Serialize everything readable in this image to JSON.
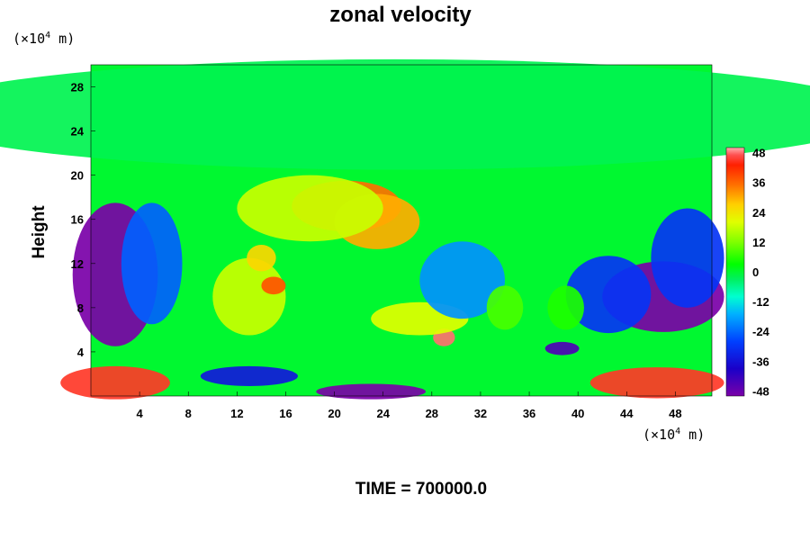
{
  "chart_data": {
    "type": "heatmap",
    "title": "zonal velocity",
    "ylabel": "Height",
    "x_unit": {
      "pre": "(×10",
      "sup": "4",
      "post": " m)"
    },
    "y_unit": {
      "pre": "(×10",
      "sup": "4",
      "post": " m)"
    },
    "x_ticks": [
      4,
      8,
      12,
      16,
      20,
      24,
      28,
      32,
      36,
      40,
      44,
      48
    ],
    "y_ticks": [
      4,
      8,
      12,
      16,
      20,
      24,
      28
    ],
    "xlim": [
      0,
      51
    ],
    "ylim": [
      0,
      30
    ],
    "colorbar_ticks": [
      48,
      36,
      24,
      12,
      0,
      -12,
      -24,
      -36,
      -48
    ],
    "colorbar_range": [
      -50,
      50
    ],
    "grid": false,
    "field_features": [
      {
        "x": 25,
        "y": 25.5,
        "rx": 40,
        "ry": 5,
        "value": -2
      },
      {
        "x": 21,
        "y": 17.2,
        "rx": 4.5,
        "ry": 2.3,
        "value": 35
      },
      {
        "x": 23.5,
        "y": 15.8,
        "rx": 3.5,
        "ry": 2.5,
        "value": 30
      },
      {
        "x": 18,
        "y": 17,
        "rx": 6,
        "ry": 3,
        "value": 18
      },
      {
        "x": 13,
        "y": 9,
        "rx": 3,
        "ry": 3.5,
        "value": 18
      },
      {
        "x": 15,
        "y": 10,
        "rx": 1,
        "ry": 0.8,
        "value": 38
      },
      {
        "x": 14,
        "y": 12.5,
        "rx": 1.2,
        "ry": 1.2,
        "value": 26
      },
      {
        "x": 29,
        "y": 5.3,
        "rx": 0.9,
        "ry": 0.8,
        "value": 48
      },
      {
        "x": 27,
        "y": 7,
        "rx": 4,
        "ry": 1.5,
        "value": 20
      },
      {
        "x": 30.5,
        "y": 10.5,
        "rx": 3.5,
        "ry": 3.5,
        "value": -20
      },
      {
        "x": 2,
        "y": 11,
        "rx": 3.5,
        "ry": 6.5,
        "value": -50
      },
      {
        "x": 5,
        "y": 12,
        "rx": 2.5,
        "ry": 5.5,
        "value": -25
      },
      {
        "x": 47,
        "y": 9,
        "rx": 5,
        "ry": 3.2,
        "value": -50
      },
      {
        "x": 42.5,
        "y": 9.2,
        "rx": 3.5,
        "ry": 3.5,
        "value": -30
      },
      {
        "x": 49,
        "y": 12.5,
        "rx": 3,
        "ry": 4.5,
        "value": -30
      },
      {
        "x": 38.7,
        "y": 4.3,
        "rx": 1.4,
        "ry": 0.6,
        "value": -45
      },
      {
        "x": 2,
        "y": 1.2,
        "rx": 4.5,
        "ry": 1.5,
        "value": 45
      },
      {
        "x": 46.5,
        "y": 1.2,
        "rx": 5.5,
        "ry": 1.4,
        "value": 45
      },
      {
        "x": 23,
        "y": 0.4,
        "rx": 4.5,
        "ry": 0.7,
        "value": -50
      },
      {
        "x": 13,
        "y": 1.8,
        "rx": 4,
        "ry": 0.9,
        "value": -35
      },
      {
        "x": 34,
        "y": 8,
        "rx": 1.5,
        "ry": 2,
        "value": 8
      },
      {
        "x": 39,
        "y": 8,
        "rx": 1.5,
        "ry": 2,
        "value": 5
      }
    ],
    "time_label": "TIME = 700000.0"
  }
}
